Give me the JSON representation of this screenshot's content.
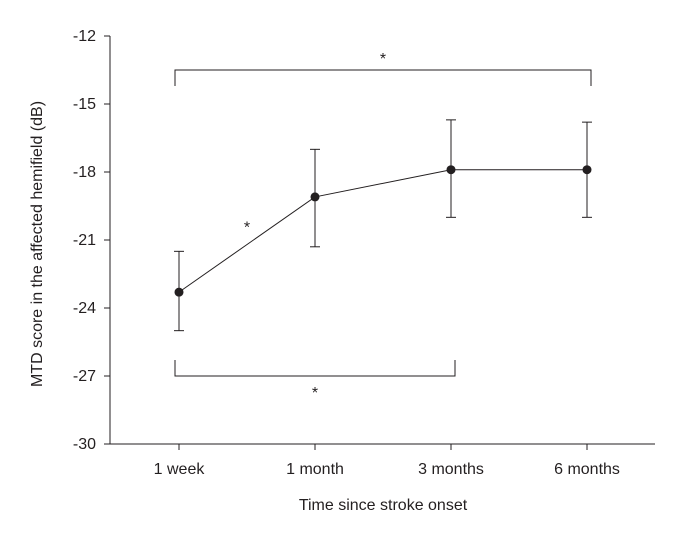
{
  "chart_data": {
    "type": "line",
    "title": "",
    "xlabel": "Time since stroke onset",
    "ylabel": "MTD score in the affected hemifield (dB)",
    "categories": [
      "1 week",
      "1 month",
      "3 months",
      "6 months"
    ],
    "series": [
      {
        "name": "MTD score",
        "values": [
          -23.3,
          -19.1,
          -17.9,
          -17.9
        ],
        "err_low": [
          -25.0,
          -21.3,
          -20.0,
          -20.0
        ],
        "err_high": [
          -21.5,
          -17.0,
          -15.7,
          -15.8
        ]
      }
    ],
    "yticks": [
      -12,
      -15,
      -18,
      -21,
      -24,
      -27,
      -30
    ],
    "ytick_labels": [
      "-12",
      "-15",
      "-18",
      "-21",
      "-24",
      "-27",
      "-30"
    ],
    "ylim": [
      -30,
      -12
    ],
    "grid": false,
    "legend": "none",
    "annotations": [
      {
        "kind": "bracket",
        "from": "1 week",
        "to": "6 months",
        "y": -13.5,
        "side": "top",
        "label": "*"
      },
      {
        "kind": "bracket",
        "from": "1 week",
        "to": "3 months",
        "y": -27.0,
        "side": "bottom",
        "label": "*"
      },
      {
        "kind": "text",
        "between": [
          "1 week",
          "1 month"
        ],
        "y": -20.4,
        "label": "*"
      }
    ]
  }
}
